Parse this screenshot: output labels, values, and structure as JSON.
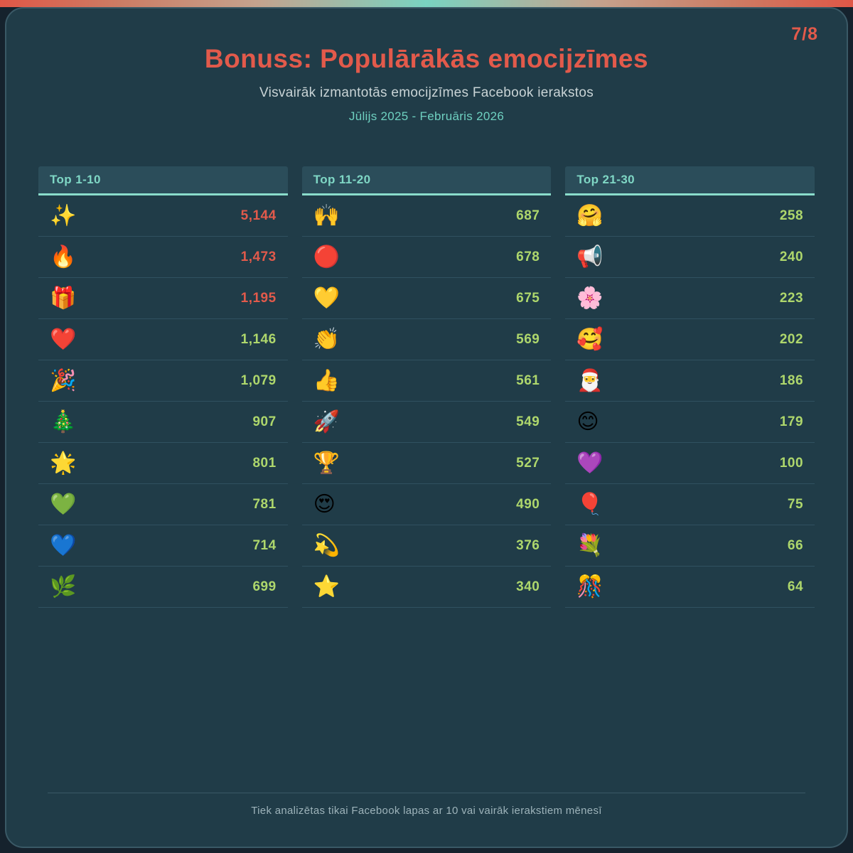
{
  "page": {
    "page_number": "7/8",
    "title": "Bonuss: Populārākās emocijzīmes",
    "subtitle": "Visvairāk izmantotās emocijzīmes Facebook ierakstos",
    "date_range": "Jūlijs 2025 - Februāris 2026",
    "footnote": "Tiek analizētas tikai Facebook lapas ar 10 vai vairāk ierakstiem mēnesī"
  },
  "colors": {
    "accent_coral": "#e25a4b",
    "value_green": "#aed76c",
    "header_teal": "#7fd7c5",
    "card_background": "#203c48",
    "header_cell_background": "#2b4d5a",
    "gradient_bar": [
      "#e05747",
      "#c5a28d",
      "#79d3c1",
      "#c5a28d",
      "#e05747"
    ]
  },
  "chart_data": {
    "type": "table",
    "title": "Bonuss: Populārākās emocijzīmes",
    "subtitle": "Visvairāk izmantotās emocijzīmes Facebook ierakstos",
    "period": "Jūlijs 2025 - Februāris 2026",
    "tables": [
      {
        "header": "Top 1-10",
        "rows": [
          {
            "emoji": "✨",
            "name": "sparkles",
            "value": "5,144",
            "color": "coral"
          },
          {
            "emoji": "🔥",
            "name": "fire",
            "value": "1,473",
            "color": "coral"
          },
          {
            "emoji": "🎁",
            "name": "wrapped-gift",
            "value": "1,195",
            "color": "coral"
          },
          {
            "emoji": "❤️",
            "name": "red-heart",
            "value": "1,146",
            "color": "green"
          },
          {
            "emoji": "🎉",
            "name": "party-popper",
            "value": "1,079",
            "color": "green"
          },
          {
            "emoji": "🎄",
            "name": "christmas-tree",
            "value": "907",
            "color": "green"
          },
          {
            "emoji": "🌟",
            "name": "glowing-star",
            "value": "801",
            "color": "green"
          },
          {
            "emoji": "💚",
            "name": "green-heart",
            "value": "781",
            "color": "green"
          },
          {
            "emoji": "💙",
            "name": "blue-heart",
            "value": "714",
            "color": "green"
          },
          {
            "emoji": "🌿",
            "name": "herb",
            "value": "699",
            "color": "green"
          }
        ]
      },
      {
        "header": "Top 11-20",
        "rows": [
          {
            "emoji": "🙌",
            "name": "raising-hands",
            "value": "687",
            "color": "green"
          },
          {
            "emoji": "🔴",
            "name": "red-circle",
            "value": "678",
            "color": "green"
          },
          {
            "emoji": "💛",
            "name": "yellow-heart",
            "value": "675",
            "color": "green"
          },
          {
            "emoji": "👏",
            "name": "clapping-hands",
            "value": "569",
            "color": "green"
          },
          {
            "emoji": "👍",
            "name": "thumbs-up",
            "value": "561",
            "color": "green"
          },
          {
            "emoji": "🚀",
            "name": "rocket",
            "value": "549",
            "color": "green"
          },
          {
            "emoji": "🏆",
            "name": "trophy",
            "value": "527",
            "color": "green"
          },
          {
            "emoji": "😍",
            "name": "smiling-face-heart-eyes",
            "value": "490",
            "color": "green"
          },
          {
            "emoji": "💫",
            "name": "dizzy-star",
            "value": "376",
            "color": "green"
          },
          {
            "emoji": "⭐",
            "name": "star",
            "value": "340",
            "color": "green"
          }
        ]
      },
      {
        "header": "Top 21-30",
        "rows": [
          {
            "emoji": "🤗",
            "name": "hugging-face",
            "value": "258",
            "color": "green"
          },
          {
            "emoji": "📢",
            "name": "loudspeaker",
            "value": "240",
            "color": "green"
          },
          {
            "emoji": "🌸",
            "name": "cherry-blossom",
            "value": "223",
            "color": "green"
          },
          {
            "emoji": "🥰",
            "name": "smiling-face-with-hearts",
            "value": "202",
            "color": "green"
          },
          {
            "emoji": "🎅",
            "name": "santa-claus",
            "value": "186",
            "color": "green"
          },
          {
            "emoji": "😊",
            "name": "smiling-face-smiling-eyes",
            "value": "179",
            "color": "green"
          },
          {
            "emoji": "💜",
            "name": "purple-heart",
            "value": "100",
            "color": "green"
          },
          {
            "emoji": "🎈",
            "name": "balloon",
            "value": "75",
            "color": "green"
          },
          {
            "emoji": "💐",
            "name": "bouquet",
            "value": "66",
            "color": "green"
          },
          {
            "emoji": "🎊",
            "name": "confetti-ball",
            "value": "64",
            "color": "green"
          }
        ]
      }
    ]
  }
}
